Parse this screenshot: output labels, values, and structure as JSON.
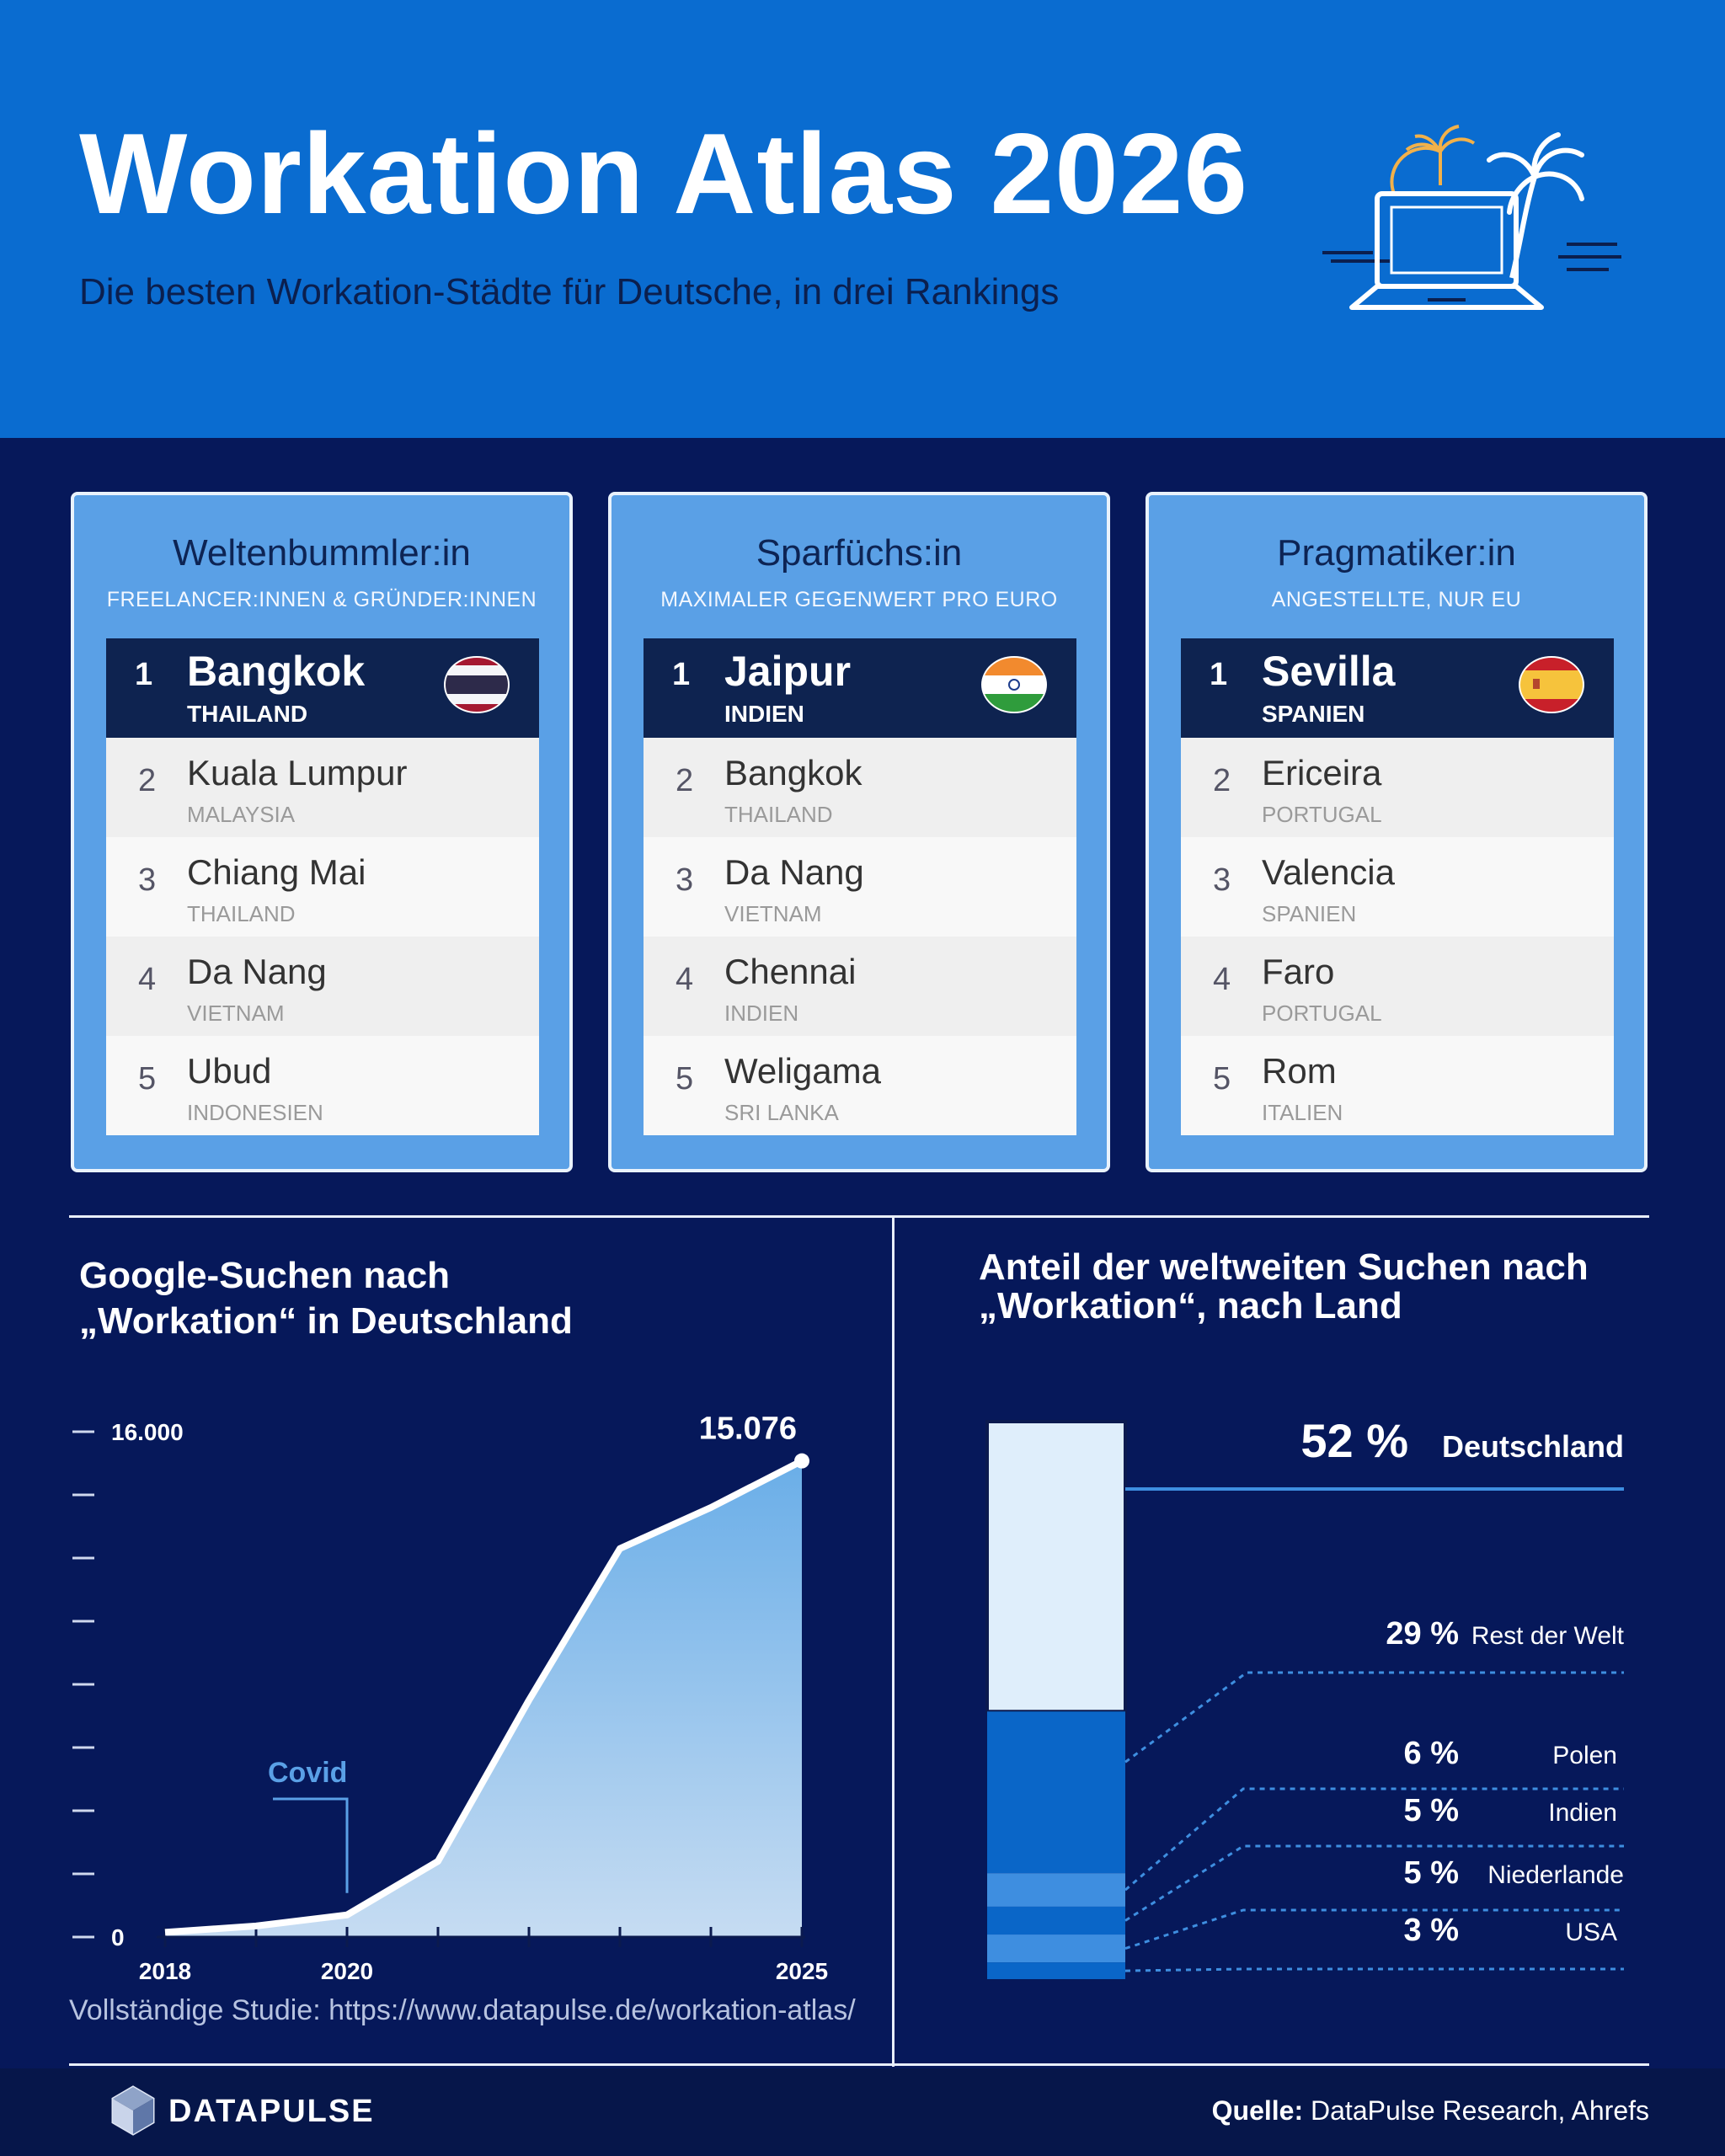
{
  "header": {
    "title": "Workation Atlas 2026",
    "subtitle": "Die besten Workation-Städte für Deutsche, in drei Rankings",
    "icon": "laptop-palm-icon"
  },
  "rankings": [
    {
      "title": "Weltenbummler:in",
      "subtitle": "FREELANCER:INNEN & GRÜNDER:INNEN",
      "flag": "thailand",
      "items": [
        {
          "rank": "1",
          "city": "Bangkok",
          "country": "THAILAND"
        },
        {
          "rank": "2",
          "city": "Kuala Lumpur",
          "country": "MALAYSIA"
        },
        {
          "rank": "3",
          "city": "Chiang Mai",
          "country": "THAILAND"
        },
        {
          "rank": "4",
          "city": "Da Nang",
          "country": "VIETNAM"
        },
        {
          "rank": "5",
          "city": "Ubud",
          "country": "INDONESIEN"
        }
      ]
    },
    {
      "title": "Sparfüchs:in",
      "subtitle": "MAXIMALER GEGENWERT PRO EURO",
      "flag": "india",
      "items": [
        {
          "rank": "1",
          "city": "Jaipur",
          "country": "INDIEN"
        },
        {
          "rank": "2",
          "city": "Bangkok",
          "country": "THAILAND"
        },
        {
          "rank": "3",
          "city": "Da Nang",
          "country": "VIETNAM"
        },
        {
          "rank": "4",
          "city": "Chennai",
          "country": "INDIEN"
        },
        {
          "rank": "5",
          "city": "Weligama",
          "country": "SRI LANKA"
        }
      ]
    },
    {
      "title": "Pragmatiker:in",
      "subtitle": "ANGESTELLTE, NUR EU",
      "flag": "spain",
      "items": [
        {
          "rank": "1",
          "city": "Sevilla",
          "country": "SPANIEN"
        },
        {
          "rank": "2",
          "city": "Ericeira",
          "country": "PORTUGAL"
        },
        {
          "rank": "3",
          "city": "Valencia",
          "country": "SPANIEN"
        },
        {
          "rank": "4",
          "city": "Faro",
          "country": "PORTUGAL"
        },
        {
          "rank": "5",
          "city": "Rom",
          "country": "ITALIEN"
        }
      ]
    }
  ],
  "line_chart": {
    "title_line1": "Google-Suchen nach",
    "title_line2": "„Workation“ in Deutschland",
    "study_link": "Vollständige Studie: https://www.datapulse.de/workation-atlas/"
  },
  "share_chart": {
    "title_line1": "Anteil der weltweiten Suchen nach",
    "title_line2": "„Workation“, nach Land"
  },
  "chart_data": [
    {
      "type": "area",
      "x": [
        2018,
        2019,
        2020,
        2021,
        2022,
        2023,
        2024,
        2025
      ],
      "values": [
        150,
        350,
        700,
        2400,
        7500,
        12300,
        13600,
        15076
      ],
      "ylim": [
        0,
        16000
      ],
      "x_ticks": [
        2018,
        2019,
        2020,
        2021,
        2022,
        2023,
        2024,
        2025
      ],
      "x_tick_labels": {
        "2018": "2018",
        "2020": "2020",
        "2025": "2025"
      },
      "y_ticks": [
        0,
        2000,
        4000,
        6000,
        8000,
        10000,
        12000,
        14000,
        16000
      ],
      "y_tick_labels": {
        "0": "0",
        "16000": "16.000"
      },
      "end_label": "15.076",
      "annotation": {
        "x": 2020,
        "label": "Covid"
      },
      "colors": {
        "line": "#ffffff",
        "fill_top": "#6aaee8",
        "fill_bottom": "#c6dcf2"
      }
    },
    {
      "type": "bar",
      "stacked": true,
      "categories": [
        "Deutschland",
        "Rest der Welt",
        "Polen",
        "Indien",
        "Niederlande",
        "USA"
      ],
      "values": [
        52,
        29,
        6,
        5,
        5,
        3
      ],
      "value_labels": [
        "52 %",
        "29 %",
        "6 %",
        "5 %",
        "5 %",
        "3 %"
      ],
      "colors": [
        "#dfeefb",
        "#0a66c8",
        "#3e8ee0",
        "#0a66c8",
        "#3e8ee0",
        "#0a66c8"
      ]
    }
  ],
  "footer": {
    "brand": "DATAPULSE",
    "source_label": "Quelle:",
    "source_text": "DataPulse Research, Ahrefs"
  }
}
